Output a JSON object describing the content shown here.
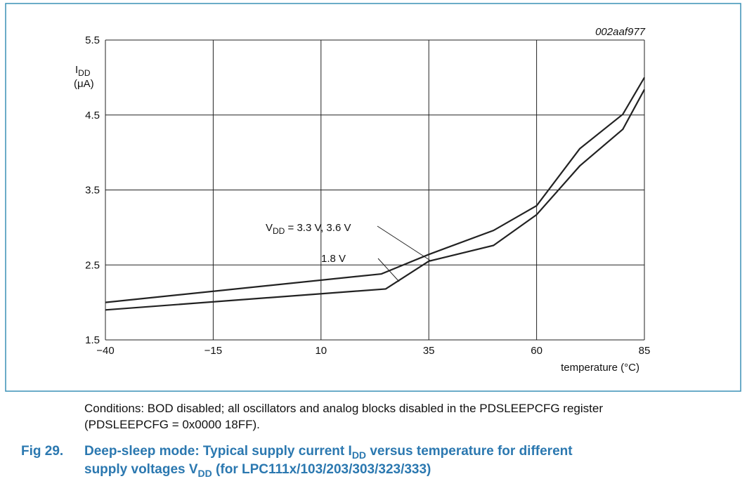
{
  "figure_id": "002aaf977",
  "conditions": [
    "Conditions: BOD disabled; all oscillators and analog blocks disabled in the PDSLEEPCFG register",
    "(PDSLEEPCFG = 0x0000 18FF)."
  ],
  "caption": {
    "number": "Fig 29.",
    "lines": [
      [
        "Deep-sleep mode: Typical supply current I",
        "DD",
        " versus temperature for different"
      ],
      [
        "supply voltages V",
        "DD",
        " (for LPC111x/103/203/303/323/333)"
      ]
    ]
  },
  "chart_data": {
    "type": "line",
    "ylabel": {
      "symbol": "I",
      "subscript": "DD",
      "unit": "(μA)"
    },
    "xlabel": "temperature (°C)",
    "xlim": [
      -40,
      85
    ],
    "xticks": [
      {
        "value": -40,
        "label": "−40"
      },
      {
        "value": -15,
        "label": "−15"
      },
      10,
      35,
      60,
      85
    ],
    "ylim": [
      1.5,
      5.5
    ],
    "yticks": [
      1.5,
      2.5,
      3.5,
      4.5,
      5.5
    ],
    "grid": true,
    "series": [
      {
        "label": {
          "prefix": "V",
          "subscript": "DD",
          "suffix": " = 3.3 V, 3.6 V"
        },
        "color": "#222222",
        "x": [
          -40,
          24,
          35,
          50,
          60,
          70,
          80,
          85
        ],
        "values": [
          2.0,
          2.38,
          2.64,
          2.96,
          3.29,
          4.05,
          4.51,
          5.0
        ]
      },
      {
        "label": {
          "text": "1.8 V"
        },
        "color": "#222222",
        "x": [
          -40,
          25,
          35,
          50,
          60,
          70,
          80,
          85
        ],
        "values": [
          1.9,
          2.18,
          2.55,
          2.76,
          3.17,
          3.82,
          4.31,
          4.84
        ]
      }
    ]
  }
}
